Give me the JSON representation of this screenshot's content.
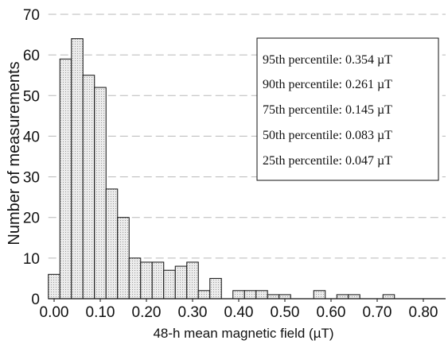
{
  "chart_data": {
    "type": "bar",
    "title": "",
    "xlabel": "48-h mean magnetic field (µT)",
    "ylabel": "Number of measurements",
    "xlim": [
      0.0,
      0.85
    ],
    "ylim": [
      0,
      70
    ],
    "bin_width": 0.025,
    "x_ticks": [
      "0.00",
      "0.10",
      "0.20",
      "0.30",
      "0.40",
      "0.50",
      "0.60",
      "0.70",
      "0.80"
    ],
    "y_ticks": [
      "0",
      "10",
      "20",
      "30",
      "40",
      "50",
      "60",
      "70"
    ],
    "grid": true,
    "bars": [
      {
        "x0": -0.0125,
        "value": 6
      },
      {
        "x0": 0.0125,
        "value": 59
      },
      {
        "x0": 0.0375,
        "value": 64
      },
      {
        "x0": 0.0625,
        "value": 55
      },
      {
        "x0": 0.0875,
        "value": 52
      },
      {
        "x0": 0.1125,
        "value": 27
      },
      {
        "x0": 0.1375,
        "value": 20
      },
      {
        "x0": 0.1625,
        "value": 10
      },
      {
        "x0": 0.1875,
        "value": 9
      },
      {
        "x0": 0.2125,
        "value": 9
      },
      {
        "x0": 0.2375,
        "value": 7
      },
      {
        "x0": 0.2625,
        "value": 8
      },
      {
        "x0": 0.2875,
        "value": 9
      },
      {
        "x0": 0.3125,
        "value": 2
      },
      {
        "x0": 0.3375,
        "value": 5
      },
      {
        "x0": 0.3625,
        "value": 0
      },
      {
        "x0": 0.3875,
        "value": 2
      },
      {
        "x0": 0.4125,
        "value": 2
      },
      {
        "x0": 0.4375,
        "value": 2
      },
      {
        "x0": 0.4625,
        "value": 1
      },
      {
        "x0": 0.4875,
        "value": 1
      },
      {
        "x0": 0.5625,
        "value": 2
      },
      {
        "x0": 0.6125,
        "value": 1
      },
      {
        "x0": 0.6375,
        "value": 1
      },
      {
        "x0": 0.7125,
        "value": 1
      }
    ],
    "legend_position": "top-right",
    "annotations": [
      "95th percentile: 0.354 µT",
      "90th percentile: 0.261 µT",
      "75th percentile: 0.145 µT",
      "50th percentile: 0.083 µT",
      "25th percentile: 0.047 µT"
    ],
    "colors": {
      "bar_fill": "#ececec",
      "bar_edge": "#111111",
      "grid": "#b8b8b8"
    }
  }
}
